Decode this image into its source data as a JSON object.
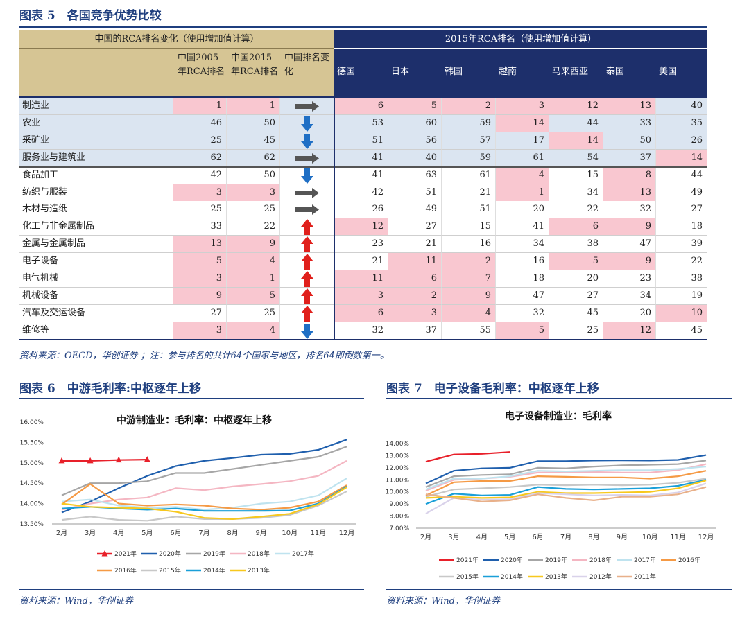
{
  "figure5": {
    "caption": "图表 5　各国竞争优势比较",
    "table": {
      "group_headers": [
        "中国的RCA排名变化（使用增加值计算）",
        "2015年RCA排名（使用增加值计算）"
      ],
      "column_headers": [
        "中国2005年RCA排名",
        "中国2015年RCA排名",
        "中国排名变化",
        "德国",
        "日本",
        "韩国",
        "越南",
        "马来西亚",
        "泰国",
        "美国"
      ],
      "rows": [
        {
          "name": "制造业",
          "values": [
            1,
            1,
            6,
            5,
            2,
            3,
            12,
            13,
            40
          ],
          "change": "right",
          "pink": [
            0,
            1,
            2,
            3,
            4,
            5,
            6,
            7
          ]
        },
        {
          "name": "农业",
          "values": [
            46,
            50,
            53,
            60,
            59,
            14,
            44,
            33,
            35
          ],
          "change": "down",
          "pink": [
            5
          ]
        },
        {
          "name": "采矿业",
          "values": [
            25,
            45,
            51,
            56,
            57,
            17,
            14,
            50,
            26
          ],
          "change": "down",
          "pink": [
            6
          ]
        },
        {
          "name": "服务业与建筑业",
          "values": [
            62,
            62,
            41,
            40,
            59,
            61,
            54,
            37,
            14
          ],
          "change": "right",
          "pink": [
            8
          ]
        },
        {
          "name": "食品加工",
          "values": [
            42,
            50,
            41,
            63,
            61,
            4,
            15,
            8,
            44
          ],
          "change": "down",
          "pink": [
            5,
            7
          ]
        },
        {
          "name": "纺织与服装",
          "values": [
            3,
            3,
            42,
            51,
            21,
            1,
            34,
            13,
            49
          ],
          "change": "right",
          "pink": [
            0,
            1,
            5,
            7
          ]
        },
        {
          "name": "木材与造纸",
          "values": [
            25,
            25,
            26,
            49,
            51,
            20,
            22,
            32,
            27
          ],
          "change": "right",
          "pink": []
        },
        {
          "name": "化工与非金属制品",
          "values": [
            33,
            22,
            12,
            27,
            15,
            41,
            6,
            9,
            18
          ],
          "change": "up",
          "pink": [
            2,
            6,
            7
          ]
        },
        {
          "name": "金属与金属制品",
          "values": [
            13,
            9,
            23,
            21,
            16,
            34,
            38,
            47,
            39
          ],
          "change": "up",
          "pink": [
            0,
            1
          ]
        },
        {
          "name": "电子设备",
          "values": [
            5,
            4,
            21,
            11,
            2,
            16,
            5,
            9,
            22
          ],
          "change": "up",
          "pink": [
            0,
            1,
            3,
            4,
            6,
            7
          ]
        },
        {
          "name": "电气机械",
          "values": [
            3,
            1,
            11,
            6,
            7,
            18,
            20,
            23,
            38
          ],
          "change": "up",
          "pink": [
            0,
            1,
            2,
            3,
            4
          ]
        },
        {
          "name": "机械设备",
          "values": [
            9,
            5,
            3,
            2,
            9,
            47,
            27,
            34,
            19
          ],
          "change": "up",
          "pink": [
            0,
            1,
            2,
            3,
            4
          ]
        },
        {
          "name": "汽车及交运设备",
          "values": [
            27,
            25,
            6,
            3,
            4,
            32,
            45,
            20,
            10
          ],
          "change": "up",
          "pink": [
            2,
            3,
            4,
            8
          ]
        },
        {
          "name": "维修等",
          "values": [
            3,
            4,
            32,
            37,
            55,
            5,
            25,
            12,
            45
          ],
          "change": "down",
          "pink": [
            0,
            1,
            5,
            7
          ]
        }
      ]
    },
    "source": "资料来源：OECD，华创证券 ；注：参与排名的共计64个国家与地区，排名64即倒数第一。"
  },
  "chart_data": [
    {
      "type": "line",
      "caption": "图表 6　中游毛利率:中枢逐年上移",
      "title": "中游制造业：毛利率：中枢逐年上移",
      "categories": [
        "2月",
        "3月",
        "4月",
        "5月",
        "6月",
        "7月",
        "8月",
        "9月",
        "10月",
        "11月",
        "12月"
      ],
      "ylim": [
        13.5,
        16
      ],
      "yticks": [
        {
          "value": 13.5,
          "label": "13.50%"
        },
        {
          "value": 14,
          "label": "14.00%"
        },
        {
          "value": 14.5,
          "label": "14.50%"
        },
        {
          "value": 15,
          "label": "15.00%"
        },
        {
          "value": 15.5,
          "label": "15.50%"
        },
        {
          "value": 16,
          "label": "16.00%"
        }
      ],
      "grid": false,
      "series": [
        {
          "name": "2021年",
          "color": "#e8202a",
          "marker": "triangle",
          "values": [
            15.05,
            15.05,
            15.07,
            15.08,
            null,
            null,
            null,
            null,
            null,
            null,
            null
          ]
        },
        {
          "name": "2020年",
          "color": "#1f5fad",
          "values": [
            13.78,
            14.05,
            14.38,
            14.68,
            14.92,
            15.05,
            15.12,
            15.2,
            15.22,
            15.32,
            15.57
          ]
        },
        {
          "name": "2019年",
          "color": "#a6a6a6",
          "values": [
            14.2,
            14.5,
            14.5,
            14.55,
            14.75,
            14.75,
            14.85,
            14.95,
            15.05,
            15.15,
            15.4
          ]
        },
        {
          "name": "2018年",
          "color": "#f4b6c2",
          "values": [
            13.85,
            14,
            14.1,
            14.15,
            14.38,
            14.33,
            14.42,
            14.48,
            14.55,
            14.68,
            15.05
          ]
        },
        {
          "name": "2017年",
          "color": "#bfe3ef",
          "values": [
            14.05,
            14.1,
            13.95,
            13.9,
            13.92,
            13.85,
            13.9,
            14,
            14.05,
            14.2,
            14.62
          ]
        },
        {
          "name": "2016年",
          "color": "#f59a45",
          "values": [
            13.98,
            14.48,
            14,
            13.95,
            13.98,
            13.95,
            13.88,
            13.85,
            13.9,
            14.05,
            14.45
          ]
        },
        {
          "name": "2015年",
          "color": "#c8c8c8",
          "values": [
            13.6,
            13.68,
            13.6,
            13.58,
            13.68,
            13.62,
            13.62,
            13.65,
            13.72,
            13.95,
            14.3
          ]
        },
        {
          "name": "2014年",
          "color": "#1a9fd8",
          "values": [
            13.88,
            13.92,
            13.88,
            13.85,
            13.88,
            13.82,
            13.82,
            13.82,
            13.83,
            14,
            14.42
          ]
        },
        {
          "name": "2013年",
          "color": "#f7c81e",
          "values": [
            14,
            13.92,
            13.9,
            13.88,
            13.8,
            13.65,
            13.62,
            13.68,
            13.75,
            13.98,
            14.4
          ]
        }
      ],
      "source": "资料来源：Wind，华创证券"
    },
    {
      "type": "line",
      "caption": "图表 7　电子设备毛利率：中枢逐年上移",
      "title": "电子设备制造业：毛利率",
      "categories": [
        "2月",
        "3月",
        "4月",
        "5月",
        "6月",
        "7月",
        "8月",
        "9月",
        "10月",
        "11月",
        "12月"
      ],
      "ylim": [
        7,
        14
      ],
      "yticks": [
        {
          "value": 7,
          "label": "7.00%"
        },
        {
          "value": 8,
          "label": "8.00%"
        },
        {
          "value": 9,
          "label": "9.00%"
        },
        {
          "value": 10,
          "label": "10.00%"
        },
        {
          "value": 11,
          "label": "11.00%"
        },
        {
          "value": 12,
          "label": "12.00%"
        },
        {
          "value": 13,
          "label": "13.00%"
        },
        {
          "value": 14,
          "label": "14.00%"
        }
      ],
      "grid": false,
      "series": [
        {
          "name": "2021年",
          "color": "#e8202a",
          "values": [
            12.5,
            13.1,
            13.15,
            13.3,
            null,
            null,
            null,
            null,
            null,
            null,
            null
          ]
        },
        {
          "name": "2020年",
          "color": "#1f5fad",
          "values": [
            10.7,
            11.75,
            11.95,
            12,
            12.55,
            12.55,
            12.6,
            12.62,
            12.6,
            12.65,
            13.05
          ]
        },
        {
          "name": "2019年",
          "color": "#a6a6a6",
          "values": [
            10.4,
            11.3,
            11.4,
            11.45,
            12,
            11.95,
            12.1,
            12.2,
            12.25,
            12.3,
            12.6
          ]
        },
        {
          "name": "2018年",
          "color": "#f4b6c2",
          "values": [
            10.1,
            11,
            11.1,
            11.25,
            11.6,
            11.6,
            11.65,
            11.6,
            11.6,
            11.8,
            12.3
          ]
        },
        {
          "name": "2017年",
          "color": "#bfe3ef",
          "values": [
            10.2,
            11.1,
            11.1,
            11.3,
            11.75,
            11.7,
            11.75,
            11.8,
            11.8,
            11.9,
            12.1
          ]
        },
        {
          "name": "2016年",
          "color": "#f59a45",
          "values": [
            9.7,
            10.8,
            10.9,
            10.9,
            11.3,
            11.25,
            11.2,
            11.2,
            11.1,
            11.3,
            11.75
          ]
        },
        {
          "name": "2015年",
          "color": "#c8c8c8",
          "values": [
            9.6,
            10.2,
            10.3,
            10.4,
            10.6,
            10.55,
            10.6,
            10.55,
            10.6,
            10.75,
            11.1
          ]
        },
        {
          "name": "2014年",
          "color": "#1a9fd8",
          "values": [
            9,
            9.85,
            9.7,
            9.75,
            10.4,
            10.25,
            10.2,
            10.25,
            10.3,
            10.5,
            11
          ]
        },
        {
          "name": "2013年",
          "color": "#f7c81e",
          "values": [
            9.5,
            9.6,
            9.5,
            9.55,
            10,
            9.9,
            9.9,
            9.95,
            10,
            10.3,
            10.95
          ]
        },
        {
          "name": "2012年",
          "color": "#d9d2ea",
          "values": [
            8.2,
            9.5,
            9.35,
            9.4,
            9.9,
            9.8,
            9.7,
            9.75,
            9.7,
            9.95,
            10.7
          ]
        },
        {
          "name": "2011年",
          "color": "#e8b08a",
          "values": [
            9.8,
            9.5,
            9.2,
            9.3,
            9.8,
            9.5,
            9.3,
            9.6,
            9.6,
            9.8,
            10.4
          ]
        }
      ],
      "source": "资料来源：Wind，华创证券"
    }
  ]
}
